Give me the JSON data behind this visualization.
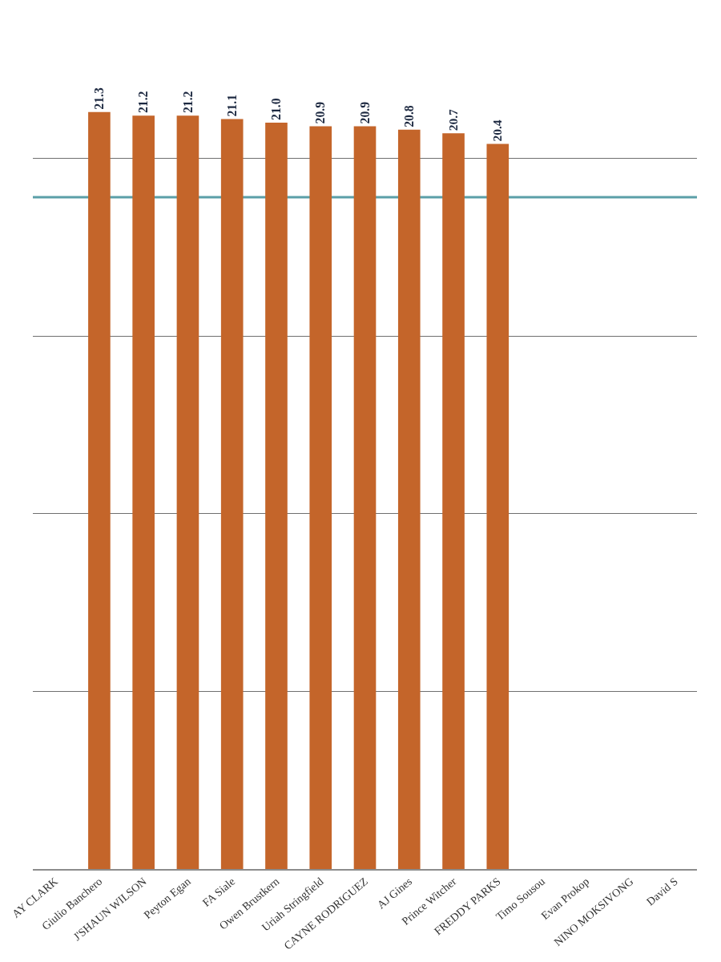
{
  "chart_data": {
    "type": "bar",
    "categories": [
      "AY CLARK",
      "Giulio Banchero",
      "J'SHAUN WILSON",
      "Peyton Egan",
      "FA Siale",
      "Owen Brustkern",
      "Uriah Stringfield",
      "CAYNE RODRIGUEZ",
      "AJ Gines",
      "Prince Witcher",
      "FREDDY PARKS",
      "Timo Sousou",
      "Evan Prokop",
      "NINO MOKSIVONG",
      "David S"
    ],
    "values": [
      null,
      21.3,
      21.2,
      21.2,
      21.1,
      21.0,
      20.9,
      20.9,
      20.8,
      20.7,
      20.4,
      null,
      null,
      null,
      null
    ],
    "value_labels": [
      null,
      "21.3",
      "21.2",
      "21.2",
      "21.1",
      "21.0",
      "20.9",
      "20.9",
      "20.8",
      "20.7",
      "20.4",
      null,
      null,
      null,
      null
    ],
    "color": "#c4652a",
    "yticks": [
      {
        "value": 0,
        "label": null
      },
      {
        "value": 5,
        "label": null
      },
      {
        "value": 10,
        "label": null
      },
      {
        "value": 15,
        "label": null
      },
      {
        "value": 20,
        "label": null
      }
    ],
    "grid": "y",
    "tick_labels": "x",
    "ref_lines": [
      {
        "axis": "y",
        "value": 18.9,
        "color": "#5b9fa8"
      }
    ]
  }
}
